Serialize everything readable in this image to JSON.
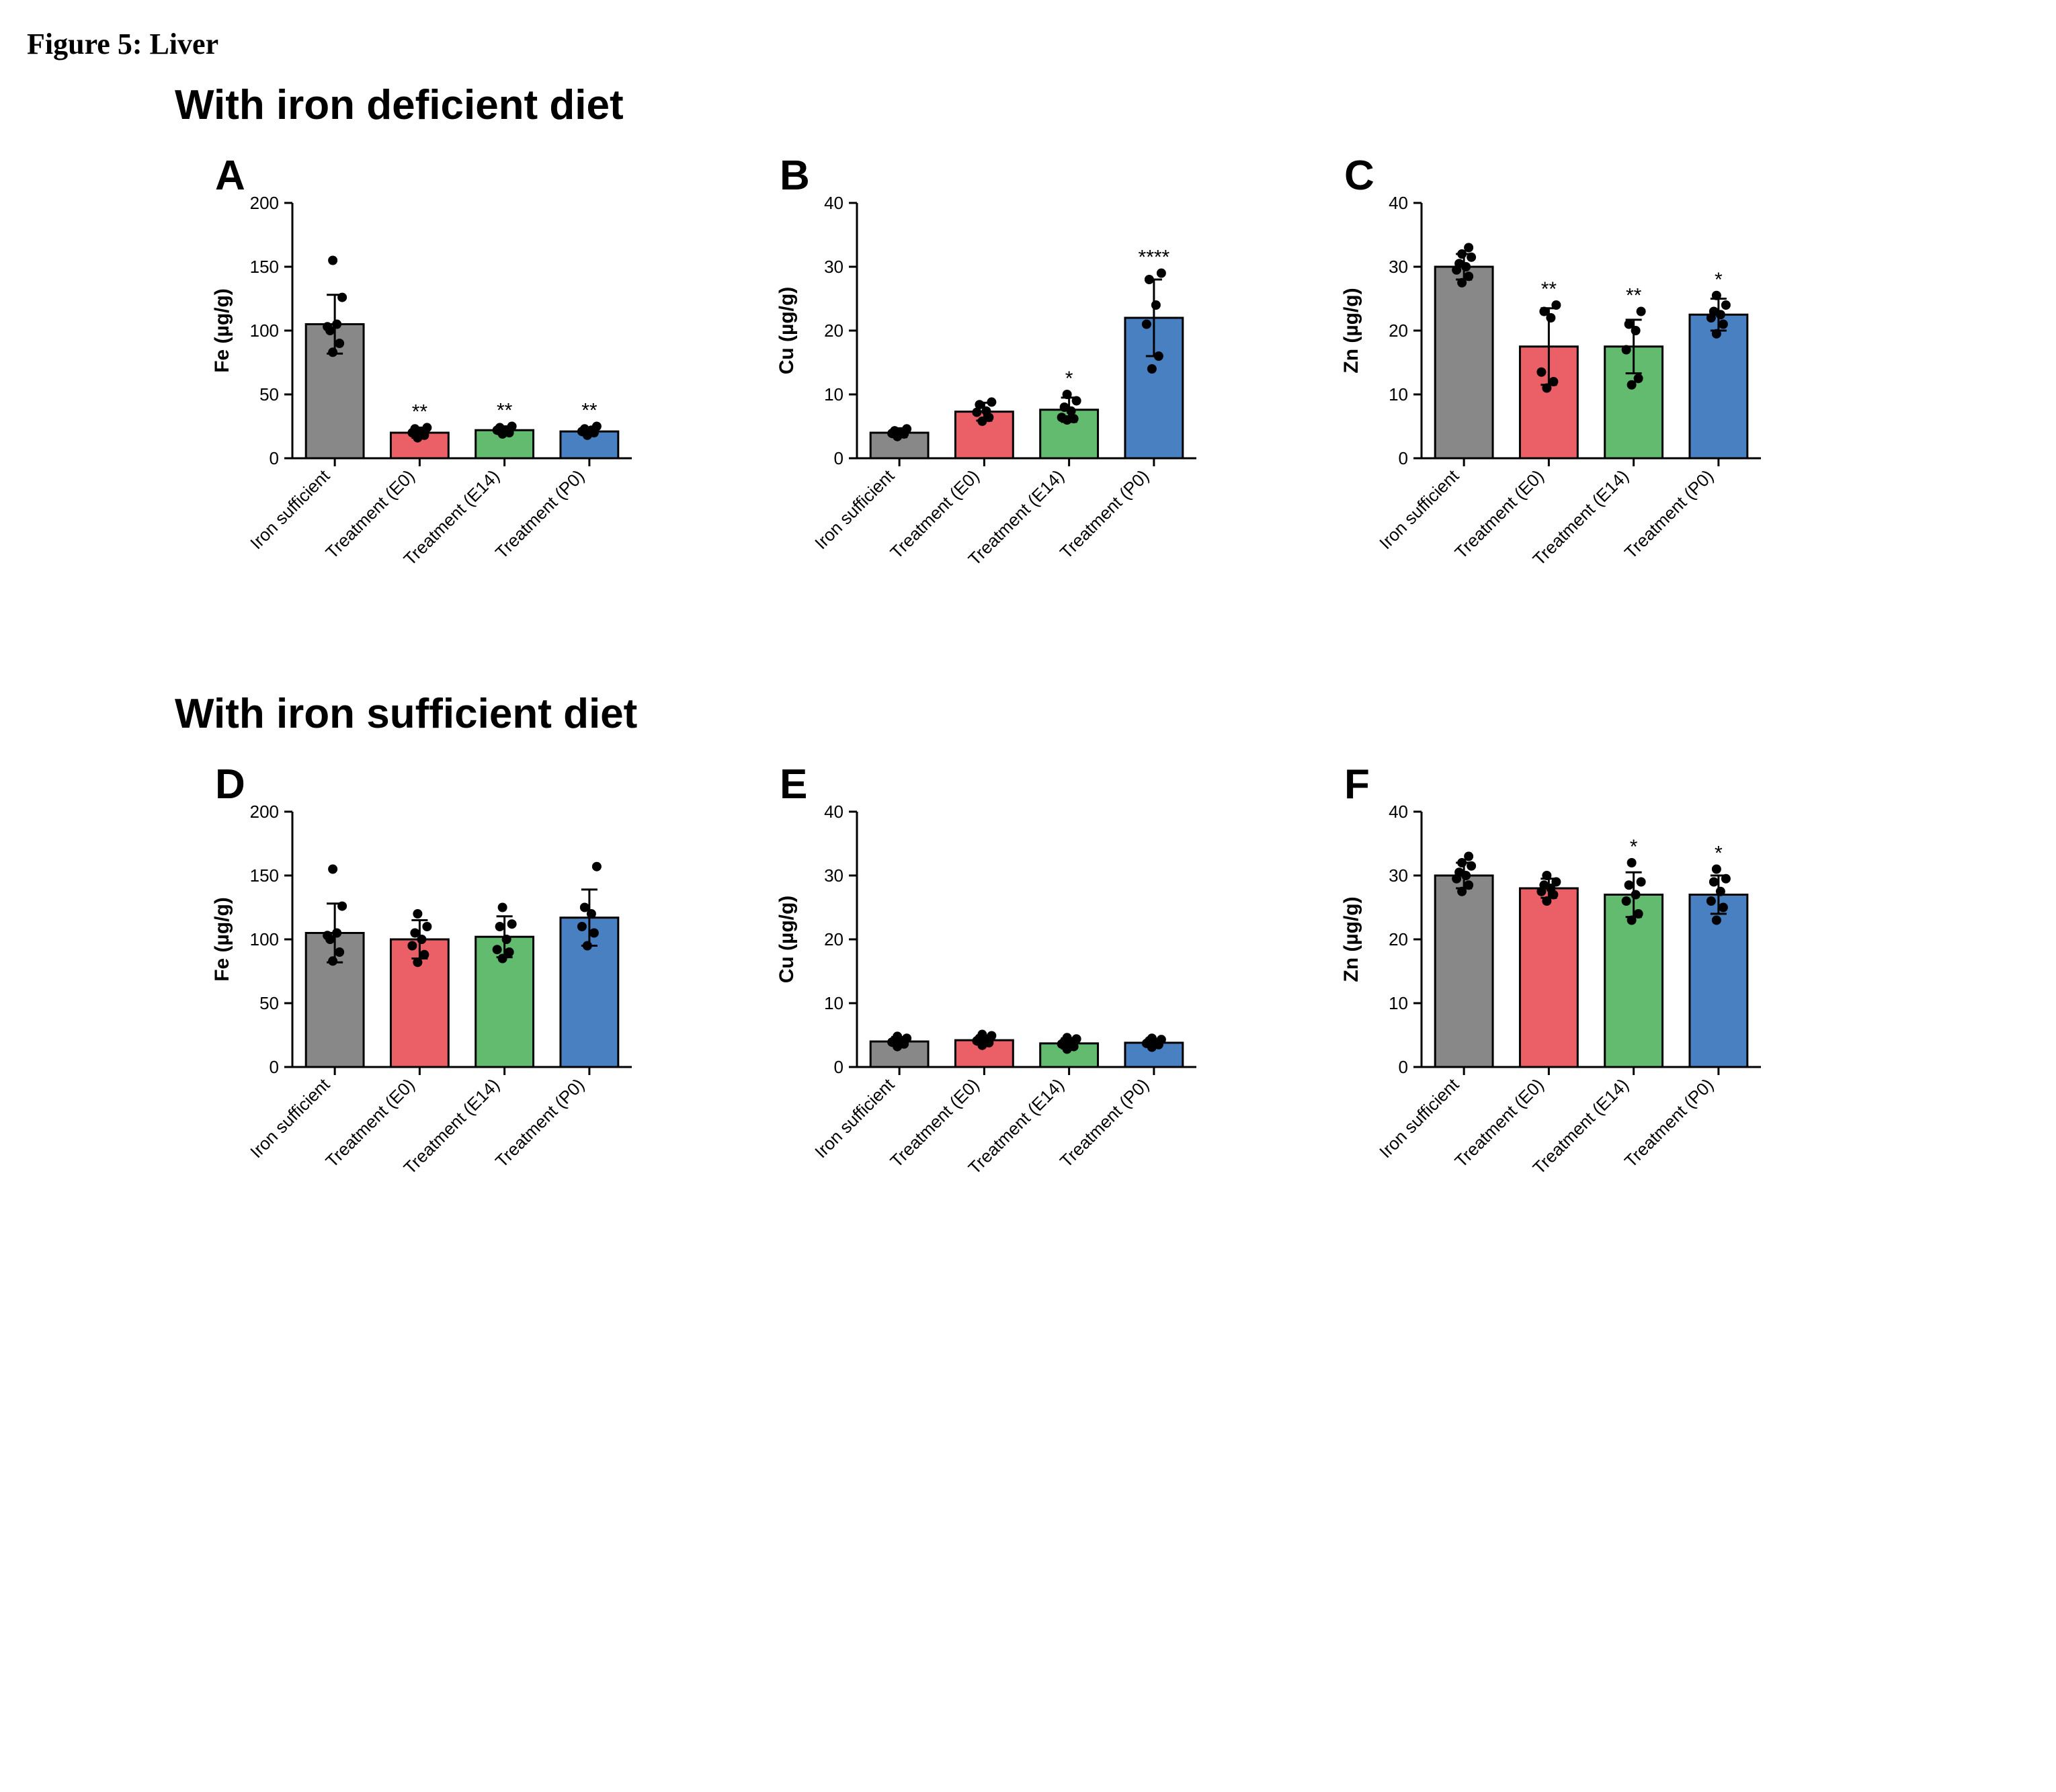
{
  "figureCaption": "Figure 5: Liver",
  "sections": [
    {
      "title": "With iron deficient diet",
      "panels": [
        "A",
        "B",
        "C"
      ]
    },
    {
      "title": "With iron sufficient diet",
      "panels": [
        "D",
        "E",
        "F"
      ]
    }
  ],
  "categories": [
    "Iron sufficient",
    "Treatment (E0)",
    "Treatment (E14)",
    "Treatment (P0)"
  ],
  "barColors": [
    "#888888",
    "#eb5f67",
    "#62bb6e",
    "#4880c1"
  ],
  "barBorder": "#000000",
  "dotColor": "#000000",
  "axisColor": "#000000",
  "background": "#ffffff",
  "axisFontSize": 26,
  "categoryFontSize": 26,
  "panelLetterFontSize": 62,
  "chartWidth": 780,
  "chartHeight": 760,
  "plotLeft": 175,
  "plotTop": 80,
  "plotWidth": 505,
  "plotHeight": 380,
  "barWidthFrac": 0.68,
  "errorCapFrac": 0.28,
  "dotRadius": 7,
  "panels": {
    "A": {
      "ylabel": "Fe (µg/g)",
      "ylim": [
        0,
        200
      ],
      "ytick": 50,
      "bars": [
        {
          "mean": 105,
          "err": 23,
          "sig": "",
          "points": [
            83,
            90,
            103,
            105,
            100,
            126,
            155
          ]
        },
        {
          "mean": 20,
          "err": 4,
          "sig": "**",
          "points": [
            16,
            18,
            20,
            21,
            23,
            24
          ]
        },
        {
          "mean": 22,
          "err": 3,
          "sig": "**",
          "points": [
            19,
            20,
            22,
            22,
            24,
            25
          ]
        },
        {
          "mean": 21,
          "err": 3,
          "sig": "**",
          "points": [
            18,
            20,
            21,
            22,
            23,
            25
          ]
        }
      ]
    },
    "B": {
      "ylabel": "Cu (µg/g)",
      "ylim": [
        0,
        40
      ],
      "ytick": 10,
      "bars": [
        {
          "mean": 4.0,
          "err": 0.7,
          "sig": "",
          "points": [
            3.4,
            3.8,
            3.9,
            4.1,
            4.3,
            4.6
          ]
        },
        {
          "mean": 7.3,
          "err": 1.4,
          "sig": "",
          "points": [
            5.8,
            6.4,
            7.2,
            7.4,
            8.4,
            8.8
          ]
        },
        {
          "mean": 7.6,
          "err": 1.9,
          "sig": "*",
          "points": [
            6.0,
            6.2,
            6.4,
            7.4,
            8.0,
            9.0,
            10.0
          ]
        },
        {
          "mean": 22.0,
          "err": 6.0,
          "sig": "****",
          "points": [
            14.0,
            16.0,
            21.0,
            24.0,
            28.0,
            29.0
          ]
        }
      ]
    },
    "C": {
      "ylabel": "Zn (µg/g)",
      "ylim": [
        0,
        40
      ],
      "ytick": 10,
      "bars": [
        {
          "mean": 30.0,
          "err": 2.0,
          "sig": "",
          "points": [
            27.5,
            28.5,
            29.5,
            30,
            30.5,
            31.5,
            32,
            33
          ]
        },
        {
          "mean": 17.5,
          "err": 6.0,
          "sig": "**",
          "points": [
            11.0,
            12.0,
            13.5,
            22.0,
            23.0,
            24.0
          ]
        },
        {
          "mean": 17.5,
          "err": 4.2,
          "sig": "**",
          "points": [
            11.5,
            12.5,
            17.0,
            20.0,
            21.0,
            23.0
          ]
        },
        {
          "mean": 22.5,
          "err": 2.5,
          "sig": "*",
          "points": [
            19.5,
            21.0,
            22.0,
            22.5,
            23.0,
            24.0,
            25.5
          ]
        }
      ]
    },
    "D": {
      "ylabel": "Fe (µg/g)",
      "ylim": [
        0,
        200
      ],
      "ytick": 50,
      "bars": [
        {
          "mean": 105,
          "err": 23,
          "sig": "",
          "points": [
            83,
            90,
            103,
            105,
            100,
            126,
            155
          ]
        },
        {
          "mean": 100,
          "err": 15,
          "sig": "",
          "points": [
            82,
            88,
            95,
            100,
            105,
            110,
            120
          ]
        },
        {
          "mean": 102,
          "err": 16,
          "sig": "",
          "points": [
            85,
            90,
            92,
            100,
            110,
            112,
            125
          ]
        },
        {
          "mean": 117,
          "err": 22,
          "sig": "",
          "points": [
            95,
            105,
            110,
            120,
            125,
            157
          ]
        }
      ]
    },
    "E": {
      "ylabel": "Cu (µg/g)",
      "ylim": [
        0,
        40
      ],
      "ytick": 10,
      "bars": [
        {
          "mean": 4.0,
          "err": 0.7,
          "sig": "",
          "points": [
            3.2,
            3.6,
            3.9,
            4.0,
            4.2,
            4.5,
            4.8
          ]
        },
        {
          "mean": 4.2,
          "err": 0.7,
          "sig": "",
          "points": [
            3.4,
            3.8,
            4.1,
            4.2,
            4.5,
            4.9,
            5.1
          ]
        },
        {
          "mean": 3.7,
          "err": 0.8,
          "sig": "",
          "points": [
            2.8,
            3.2,
            3.6,
            3.7,
            4.0,
            4.4,
            4.6
          ]
        },
        {
          "mean": 3.8,
          "err": 0.6,
          "sig": "",
          "points": [
            3.1,
            3.5,
            3.7,
            3.8,
            4.1,
            4.3,
            4.5
          ]
        }
      ]
    },
    "F": {
      "ylabel": "Zn (µg/g)",
      "ylim": [
        0,
        40
      ],
      "ytick": 10,
      "bars": [
        {
          "mean": 30.0,
          "err": 2.0,
          "sig": "",
          "points": [
            27.5,
            28.5,
            29.5,
            30,
            30.5,
            31.5,
            32,
            33
          ]
        },
        {
          "mean": 28.0,
          "err": 1.5,
          "sig": "",
          "points": [
            26.0,
            27.0,
            27.5,
            28.0,
            28.5,
            29.0,
            30.0
          ]
        },
        {
          "mean": 27.0,
          "err": 3.5,
          "sig": "*",
          "points": [
            23.0,
            24.0,
            26.0,
            27.0,
            28.5,
            29.0,
            32.0
          ]
        },
        {
          "mean": 27.0,
          "err": 3.0,
          "sig": "*",
          "points": [
            23.0,
            25.0,
            26.0,
            27.5,
            29.0,
            29.5,
            31.0
          ]
        }
      ]
    }
  }
}
